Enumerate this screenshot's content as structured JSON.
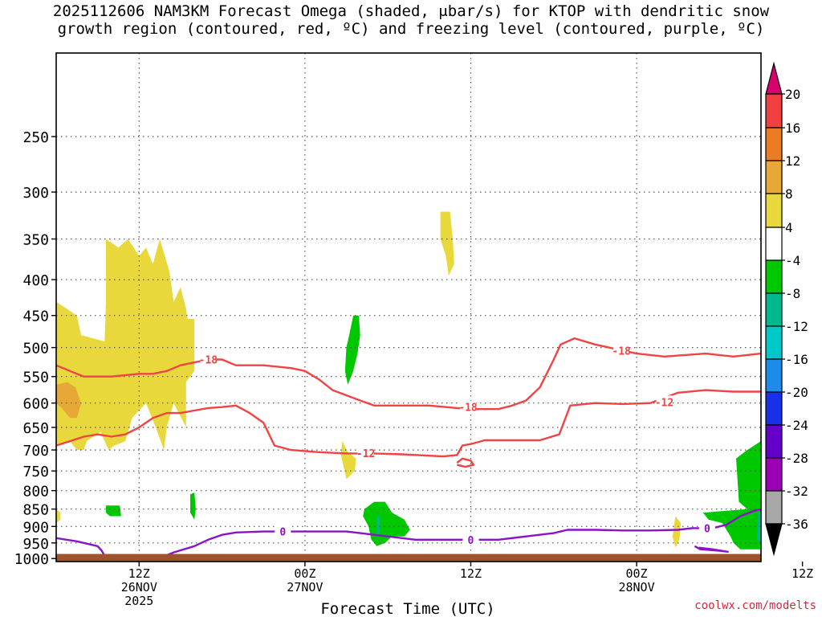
{
  "title_lines": [
    "2025112606 NAM3KM Forecast Omega (shaded, μbar/s) for KTOP with dendritic snow",
    "growth region (contoured, red, ºC) and freezing level (contoured, purple, ºC)"
  ],
  "credit": "coolwx.com/modelts",
  "chart_data": {
    "type": "time-height cross section (filled contour + line contours)",
    "title": "2025112606 NAM3KM Forecast Omega (shaded, μbar/s) for KTOP with dendritic snow growth region (contoured, red, ºC) and freezing level (contoured, purple, ºC)",
    "xlabel": "Forecast Time (UTC)",
    "ylabel": "",
    "x_range_hours_from_init": [
      0,
      51
    ],
    "y_range_hPa": [
      1010,
      190
    ],
    "y_scale": "log-pressure",
    "grid": true,
    "x_ticks": [
      {
        "hour": 6,
        "lines": [
          "12Z",
          "26NOV",
          "2025"
        ]
      },
      {
        "hour": 18,
        "lines": [
          "00Z",
          "27NOV"
        ]
      },
      {
        "hour": 30,
        "lines": [
          "12Z"
        ]
      },
      {
        "hour": 42,
        "lines": [
          "00Z",
          "28NOV"
        ]
      },
      {
        "hour": 54,
        "lines": [
          "12Z"
        ]
      }
    ],
    "y_ticks": [
      "250",
      "300",
      "350",
      "400",
      "450",
      "500",
      "550",
      "600",
      "650",
      "700",
      "750",
      "800",
      "850",
      "900",
      "950",
      "1000"
    ],
    "y_tick_values": [
      250,
      300,
      350,
      400,
      450,
      500,
      550,
      600,
      650,
      700,
      750,
      800,
      850,
      900,
      950,
      1000
    ],
    "colorbar": {
      "labels": [
        "20",
        "16",
        "12",
        "8",
        "4",
        "-4",
        "-8",
        "-12",
        "-16",
        "-20",
        "-24",
        "-28",
        "-32",
        "-36"
      ],
      "levels": [
        20,
        16,
        12,
        8,
        4,
        -4,
        -8,
        -12,
        -16,
        -20,
        -24,
        -28,
        -32,
        -36
      ],
      "colors": [
        "#d8006c",
        "#f04040",
        "#ec7c24",
        "#e8a838",
        "#e8d83c",
        "#ffffff",
        "#00c800",
        "#00b890",
        "#00c8c8",
        "#1c8ce8",
        "#1830e8",
        "#6400c8",
        "#9c00b4",
        "#a8a8a8",
        "#000000"
      ]
    },
    "omega_regions": [
      {
        "value_range": [
          4,
          8
        ],
        "color": "#e8d83c",
        "points": [
          [
            0,
            430
          ],
          [
            1.5,
            450
          ],
          [
            1.8,
            480
          ],
          [
            3.5,
            490
          ],
          [
            3.6,
            430
          ],
          [
            3.6,
            350
          ],
          [
            4.5,
            360
          ],
          [
            5.2,
            350
          ],
          [
            6,
            370
          ],
          [
            6.5,
            360
          ],
          [
            7,
            380
          ],
          [
            7.5,
            350
          ],
          [
            8.2,
            390
          ],
          [
            8.5,
            430
          ],
          [
            9,
            410
          ],
          [
            9.4,
            440
          ],
          [
            9.5,
            455
          ],
          [
            10,
            455
          ],
          [
            10,
            540
          ],
          [
            9.4,
            560
          ],
          [
            9.4,
            650
          ],
          [
            8.5,
            600
          ],
          [
            8,
            650
          ],
          [
            7.8,
            700
          ],
          [
            7.2,
            650
          ],
          [
            6.5,
            600
          ],
          [
            5.5,
            630
          ],
          [
            5,
            680
          ],
          [
            4.2,
            690
          ],
          [
            3.8,
            700
          ],
          [
            3.2,
            660
          ],
          [
            2.2,
            680
          ],
          [
            2,
            700
          ],
          [
            1.5,
            700
          ],
          [
            1,
            680
          ],
          [
            0,
            690
          ]
        ]
      },
      {
        "value_range": [
          8,
          12
        ],
        "color": "#e8a838",
        "points": [
          [
            0,
            565
          ],
          [
            0.8,
            560
          ],
          [
            1.4,
            570
          ],
          [
            1.8,
            600
          ],
          [
            1.5,
            630
          ],
          [
            1,
            630
          ],
          [
            0.4,
            610
          ],
          [
            0,
            600
          ]
        ]
      },
      {
        "value_range": [
          4,
          8
        ],
        "color": "#e8d83c",
        "points": [
          [
            0,
            850
          ],
          [
            0.3,
            860
          ],
          [
            0.3,
            880
          ],
          [
            0,
            890
          ]
        ]
      },
      {
        "value_range": [
          4,
          8
        ],
        "color": "#e8d83c",
        "points": [
          [
            27.8,
            320
          ],
          [
            28.5,
            320
          ],
          [
            28.7,
            350
          ],
          [
            28.8,
            380
          ],
          [
            28.4,
            395
          ],
          [
            28.2,
            370
          ],
          [
            27.8,
            350
          ]
        ]
      },
      {
        "value_range": [
          4,
          8
        ],
        "color": "#e8d83c",
        "points": [
          [
            20.7,
            680
          ],
          [
            21.1,
            705
          ],
          [
            21.7,
            720
          ],
          [
            21.6,
            750
          ],
          [
            21,
            770
          ],
          [
            20.8,
            740
          ],
          [
            20.6,
            710
          ]
        ]
      },
      {
        "value_range": [
          4,
          8
        ],
        "color": "#e8d83c",
        "points": [
          [
            44.8,
            870
          ],
          [
            45.2,
            890
          ],
          [
            45.1,
            940
          ],
          [
            44.8,
            965
          ],
          [
            44.6,
            930
          ]
        ]
      },
      {
        "value_range": [
          -8,
          -4
        ],
        "color": "#00c800",
        "points": [
          [
            21.5,
            450
          ],
          [
            21.9,
            450
          ],
          [
            22,
            480
          ],
          [
            21.8,
            510
          ],
          [
            21.5,
            540
          ],
          [
            21.1,
            565
          ],
          [
            20.9,
            540
          ],
          [
            21,
            500
          ],
          [
            21.2,
            480
          ]
        ]
      },
      {
        "value_range": [
          -8,
          -4
        ],
        "color": "#00c800",
        "points": [
          [
            3.6,
            840
          ],
          [
            4.6,
            840
          ],
          [
            4.7,
            870
          ],
          [
            3.9,
            870
          ],
          [
            3.6,
            860
          ]
        ]
      },
      {
        "value_range": [
          -8,
          -4
        ],
        "color": "#00c800",
        "points": [
          [
            9.7,
            810
          ],
          [
            10,
            805
          ],
          [
            10.1,
            850
          ],
          [
            10,
            880
          ],
          [
            9.7,
            860
          ]
        ]
      },
      {
        "value_range": [
          -8,
          -4
        ],
        "color": "#00c800",
        "points": [
          [
            22.3,
            850
          ],
          [
            23,
            830
          ],
          [
            23.8,
            830
          ],
          [
            24.3,
            860
          ],
          [
            25.2,
            880
          ],
          [
            25.6,
            910
          ],
          [
            25.2,
            930
          ],
          [
            24.3,
            930
          ],
          [
            23.8,
            950
          ],
          [
            23.2,
            960
          ],
          [
            22.8,
            940
          ],
          [
            22.6,
            900
          ],
          [
            22.2,
            870
          ]
        ]
      },
      {
        "value_range": [
          -12,
          -8
        ],
        "color": "#00b890",
        "points": [
          [
            23.2,
            870
          ],
          [
            23.4,
            870
          ],
          [
            23.4,
            920
          ],
          [
            23.2,
            930
          ]
        ]
      },
      {
        "value_range": [
          -8,
          -4
        ],
        "color": "#00c800",
        "points": [
          [
            50,
            850
          ],
          [
            49.4,
            830
          ],
          [
            49.2,
            720
          ],
          [
            50,
            700
          ],
          [
            51,
            680
          ],
          [
            51,
            970
          ],
          [
            49.5,
            970
          ],
          [
            49,
            950
          ],
          [
            48.8,
            930
          ],
          [
            48.2,
            890
          ],
          [
            47.2,
            880
          ],
          [
            46.8,
            860
          ]
        ]
      },
      {
        "value_range": [
          -12,
          -8
        ],
        "color": "#00b890",
        "points": [
          [
            50.8,
            860
          ],
          [
            51,
            850
          ],
          [
            51,
            950
          ],
          [
            50.7,
            940
          ]
        ]
      }
    ],
    "dendritic_contours": [
      {
        "label": "-18",
        "points": [
          [
            0,
            530
          ],
          [
            1,
            540
          ],
          [
            2,
            550
          ],
          [
            4,
            550
          ],
          [
            6,
            545
          ],
          [
            7,
            545
          ],
          [
            8,
            540
          ],
          [
            9,
            530
          ],
          [
            10,
            525
          ],
          [
            11,
            520
          ],
          [
            12,
            520
          ],
          [
            13,
            530
          ],
          [
            15,
            530
          ],
          [
            17,
            535
          ],
          [
            18,
            540
          ],
          [
            19,
            555
          ],
          [
            20,
            575
          ],
          [
            22,
            595
          ],
          [
            23,
            605
          ],
          [
            25,
            605
          ],
          [
            27,
            605
          ],
          [
            29,
            610
          ],
          [
            30,
            612
          ],
          [
            31,
            612
          ],
          [
            32,
            612
          ],
          [
            33,
            605
          ],
          [
            34,
            595
          ],
          [
            35,
            570
          ],
          [
            36,
            520
          ],
          [
            36.5,
            495
          ],
          [
            37.5,
            485
          ],
          [
            39,
            495
          ],
          [
            40,
            500
          ],
          [
            42,
            510
          ],
          [
            44,
            515
          ],
          [
            47,
            510
          ],
          [
            49,
            515
          ],
          [
            51,
            510
          ]
        ]
      },
      {
        "label": "-12",
        "points": [
          [
            0,
            690
          ],
          [
            1,
            680
          ],
          [
            2,
            670
          ],
          [
            3,
            665
          ],
          [
            4,
            670
          ],
          [
            5,
            665
          ],
          [
            6,
            650
          ],
          [
            7,
            630
          ],
          [
            8,
            620
          ],
          [
            9,
            620
          ],
          [
            10,
            615
          ],
          [
            11,
            610
          ],
          [
            12,
            608
          ],
          [
            13,
            605
          ],
          [
            14,
            620
          ],
          [
            15,
            640
          ],
          [
            15.8,
            690
          ],
          [
            17,
            700
          ],
          [
            19,
            705
          ],
          [
            21,
            708
          ],
          [
            23,
            708
          ],
          [
            25,
            710
          ],
          [
            28,
            715
          ],
          [
            29,
            712
          ],
          [
            29.4,
            690
          ],
          [
            30.2,
            685
          ],
          [
            31,
            678
          ],
          [
            33,
            678
          ],
          [
            35,
            678
          ],
          [
            36.4,
            665
          ],
          [
            37.2,
            605
          ],
          [
            39,
            600
          ],
          [
            41,
            602
          ],
          [
            43,
            600
          ],
          [
            45,
            580
          ],
          [
            47,
            575
          ],
          [
            49,
            578
          ],
          [
            51,
            578
          ]
        ]
      },
      {
        "label": "-12",
        "points": [
          [
            29,
            730
          ],
          [
            29.4,
            720
          ],
          [
            30,
            725
          ],
          [
            30.2,
            735
          ],
          [
            29.6,
            740
          ],
          [
            29,
            735
          ]
        ]
      }
    ],
    "freezing_contours": [
      {
        "label": "0",
        "points": [
          [
            0,
            935
          ],
          [
            1.5,
            945
          ],
          [
            3,
            960
          ],
          [
            3.3,
            975
          ],
          [
            3.6,
            1000
          ]
        ]
      },
      {
        "label": "0",
        "points": [
          [
            7.4,
            1000
          ],
          [
            8.5,
            980
          ],
          [
            10,
            960
          ],
          [
            11,
            940
          ],
          [
            12,
            925
          ],
          [
            13,
            918
          ],
          [
            15,
            915
          ],
          [
            17,
            915
          ],
          [
            19,
            915
          ],
          [
            21,
            915
          ],
          [
            22,
            920
          ],
          [
            24,
            930
          ],
          [
            26,
            940
          ],
          [
            28,
            940
          ],
          [
            30,
            940
          ],
          [
            32,
            940
          ],
          [
            34,
            930
          ],
          [
            36,
            920
          ],
          [
            37,
            910
          ],
          [
            39,
            910
          ],
          [
            41,
            912
          ],
          [
            43,
            912
          ],
          [
            45,
            910
          ],
          [
            46,
            905
          ],
          [
            47.5,
            905
          ],
          [
            48.5,
            895
          ],
          [
            49.5,
            870
          ],
          [
            50.5,
            855
          ],
          [
            51,
            850
          ]
        ]
      },
      {
        "label": "0",
        "points": [
          [
            46.2,
            960
          ],
          [
            46.6,
            970
          ],
          [
            48,
            975
          ],
          [
            48.6,
            978
          ],
          [
            47.5,
            970
          ],
          [
            46.5,
            965
          ]
        ]
      }
    ],
    "terrain_hPa": 985,
    "terrain_color": "#a0522d"
  }
}
